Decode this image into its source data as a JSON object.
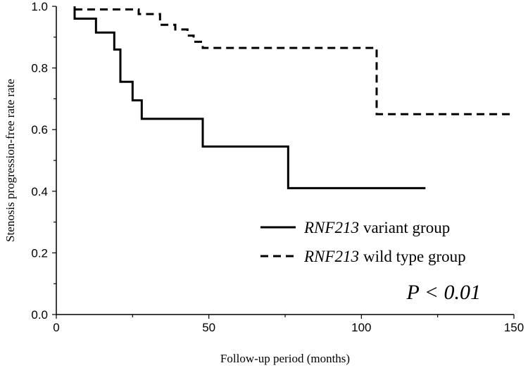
{
  "chart_data": {
    "type": "line",
    "title": "",
    "xlabel": "Follow-up period (months)",
    "ylabel": "Stenosis  progression-free rate rate",
    "xlim": [
      0,
      150
    ],
    "ylim": [
      0.0,
      1.0
    ],
    "xticks": [
      "0",
      "50",
      "100",
      "150"
    ],
    "yticks": [
      "0.0",
      "0.2",
      "0.4",
      "0.6",
      "0.8",
      "1.0"
    ],
    "grid": false,
    "legend_position": "bottom-right",
    "series": [
      {
        "name": "variant group",
        "name_italic": "RNF213",
        "style": "solid",
        "x": [
          6,
          6,
          13,
          13,
          19,
          19,
          21,
          21,
          25,
          25,
          28,
          28,
          48,
          48,
          76,
          76,
          121
        ],
        "y": [
          1.0,
          0.96,
          0.96,
          0.915,
          0.915,
          0.86,
          0.86,
          0.755,
          0.755,
          0.695,
          0.695,
          0.635,
          0.635,
          0.545,
          0.545,
          0.41,
          0.41
        ]
      },
      {
        "name": "wild type group",
        "name_italic": "RNF213",
        "style": "dashed",
        "x": [
          6,
          27,
          27,
          34,
          34,
          39,
          39,
          43,
          43,
          45,
          45,
          48,
          48,
          105,
          105,
          150
        ],
        "y": [
          0.99,
          0.99,
          0.975,
          0.975,
          0.94,
          0.94,
          0.925,
          0.925,
          0.905,
          0.905,
          0.885,
          0.885,
          0.865,
          0.865,
          0.65,
          0.65
        ]
      }
    ],
    "annotation": "P < 0.01"
  }
}
